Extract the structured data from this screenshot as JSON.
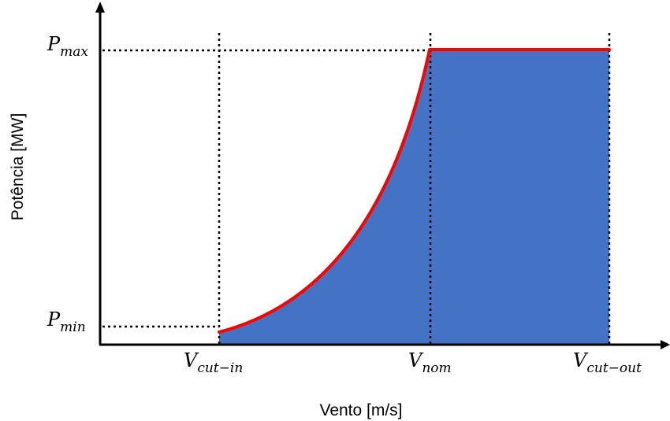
{
  "diagram": {
    "type": "area",
    "xlabel": "Vento [m/s]",
    "ylabel": "Potência [MW]",
    "x_ticks": [
      {
        "main": "V",
        "sub": "cut−in"
      },
      {
        "main": "V",
        "sub": "nom"
      },
      {
        "main": "V",
        "sub": "cut−out"
      }
    ],
    "y_ticks": [
      {
        "main": "P",
        "sub": "min"
      },
      {
        "main": "P",
        "sub": "max"
      }
    ],
    "colors": {
      "fill": "#4472C4",
      "curve": "#FF0000",
      "axis": "#000000",
      "guides": "#000000"
    }
  }
}
